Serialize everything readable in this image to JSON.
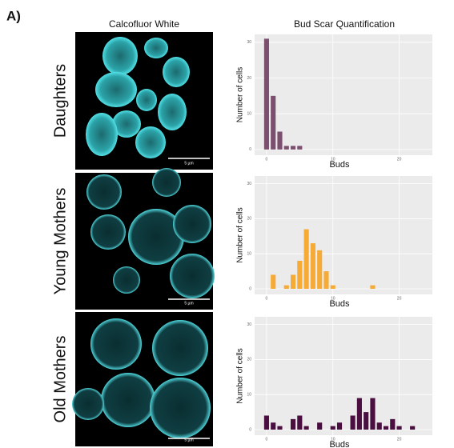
{
  "panel_label": "A)",
  "column_titles": [
    "Calcofluor White",
    "Bud Scar Quantification"
  ],
  "rows": [
    {
      "label": "Daughters",
      "scale_bar": "5 µm"
    },
    {
      "label": "Young Mothers",
      "scale_bar": "5 µm"
    },
    {
      "label": "Old Mothers",
      "scale_bar": "5 µm"
    }
  ],
  "chart_data": [
    {
      "type": "bar",
      "xlabel": "Buds",
      "ylabel": "Number of cells",
      "color": "#7b4f6e",
      "x": [
        0,
        1,
        2,
        3,
        4,
        5
      ],
      "values": [
        31,
        15,
        5,
        1,
        1,
        1
      ],
      "xlim": [
        -1.8,
        25
      ],
      "ylim": [
        -1.6,
        32.2
      ],
      "xticks": [
        0,
        10,
        20
      ],
      "yticks": [
        0,
        10,
        20,
        30
      ],
      "grid": true
    },
    {
      "type": "bar",
      "xlabel": "Buds",
      "ylabel": "Number of cells",
      "color": "#f5ab35",
      "x": [
        1,
        3,
        4,
        5,
        6,
        7,
        8,
        9,
        10,
        16
      ],
      "values": [
        4,
        1,
        4,
        8,
        17,
        13,
        11,
        5,
        1,
        1
      ],
      "xlim": [
        -1.8,
        25
      ],
      "ylim": [
        -1.6,
        32.2
      ],
      "xticks": [
        0,
        10,
        20
      ],
      "yticks": [
        0,
        10,
        20,
        30
      ],
      "grid": true
    },
    {
      "type": "bar",
      "xlabel": "Buds",
      "ylabel": "Number of cells",
      "color": "#4a0f40",
      "x": [
        0,
        1,
        2,
        4,
        5,
        6,
        8,
        10,
        11,
        13,
        14,
        15,
        16,
        17,
        18,
        19,
        20,
        22
      ],
      "values": [
        4,
        2,
        1,
        3,
        4,
        1,
        2,
        1,
        2,
        4,
        9,
        5,
        9,
        2,
        1,
        3,
        1,
        1
      ],
      "xlim": [
        -1.8,
        25
      ],
      "ylim": [
        -1.6,
        32.2
      ],
      "xticks": [
        0,
        10,
        20
      ],
      "yticks": [
        0,
        10,
        20,
        30
      ],
      "grid": true
    }
  ]
}
